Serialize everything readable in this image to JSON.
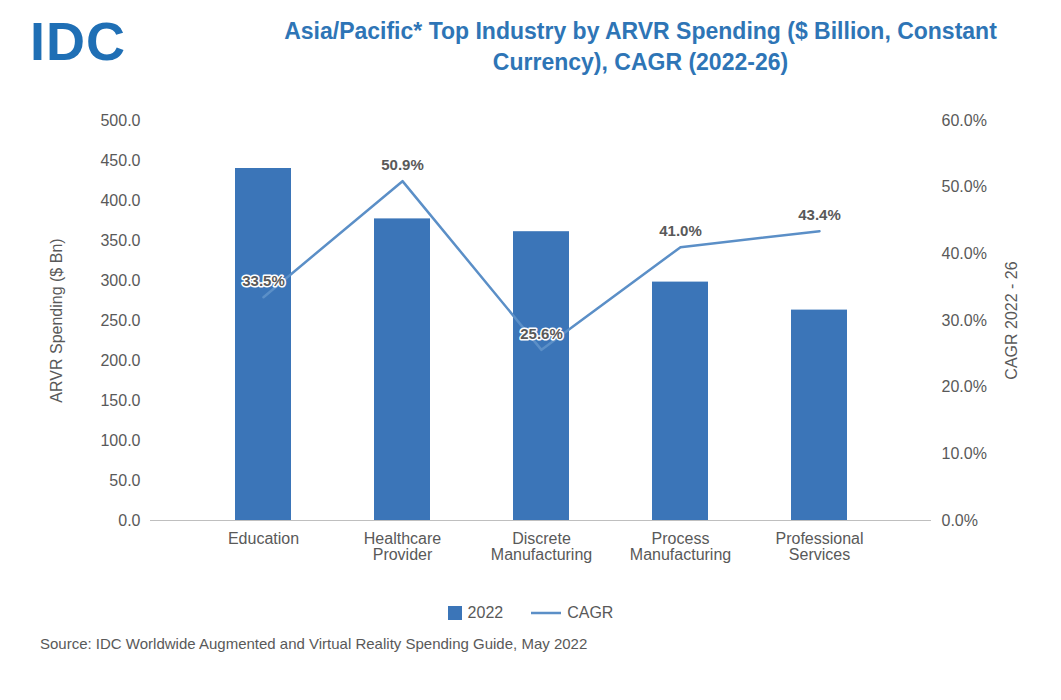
{
  "chart_data": {
    "type": "bar",
    "logo_text": "IDC",
    "title": "Asia/Pacific* Top Industry by ARVR Spending ($ Billion, Constant Currency), CAGR (2022-26)",
    "ylabel": "ARVR Spending ($ Bn)",
    "y2label": "CAGR 2022 - 26",
    "caption": "Source: IDC Worldwide Augmented and Virtual Reality Spending Guide, May 2022",
    "categories": [
      "Education",
      "Healthcare Provider",
      "Discrete Manufacturing",
      "Process Manufacturing",
      "Professional Services"
    ],
    "series": [
      {
        "name": "2022",
        "type": "bar",
        "color": "#3b75b8",
        "values": [
          440,
          377,
          361,
          298,
          263
        ]
      },
      {
        "name": "CAGR",
        "type": "line",
        "axis": "y2",
        "color": "#5b8fc7",
        "data_labels": true,
        "values": [
          33.5,
          50.9,
          25.6,
          41.0,
          43.4
        ],
        "value_labels": [
          "33.5%",
          "50.9%",
          "25.6%",
          "41.0%",
          "43.4%"
        ]
      }
    ],
    "ylim": [
      0,
      500
    ],
    "yticks": [
      {
        "value": 0,
        "label": "0.0"
      },
      {
        "value": 50,
        "label": "50.0"
      },
      {
        "value": 100,
        "label": "100.0"
      },
      {
        "value": 150,
        "label": "150.0"
      },
      {
        "value": 200,
        "label": "200.0"
      },
      {
        "value": 250,
        "label": "250.0"
      },
      {
        "value": 300,
        "label": "300.0"
      },
      {
        "value": 350,
        "label": "350.0"
      },
      {
        "value": 400,
        "label": "400.0"
      },
      {
        "value": 450,
        "label": "450.0"
      },
      {
        "value": 500,
        "label": "500.0"
      }
    ],
    "y2lim": [
      0,
      60
    ],
    "y2ticks": [
      {
        "value": 0,
        "label": "0.0%"
      },
      {
        "value": 10,
        "label": "10.0%"
      },
      {
        "value": 20,
        "label": "20.0%"
      },
      {
        "value": 30,
        "label": "30.0%"
      },
      {
        "value": 40,
        "label": "40.0%"
      },
      {
        "value": 50,
        "label": "50.0%"
      },
      {
        "value": 60,
        "label": "60.0%"
      }
    ],
    "grid": false,
    "legend": "bottom"
  }
}
